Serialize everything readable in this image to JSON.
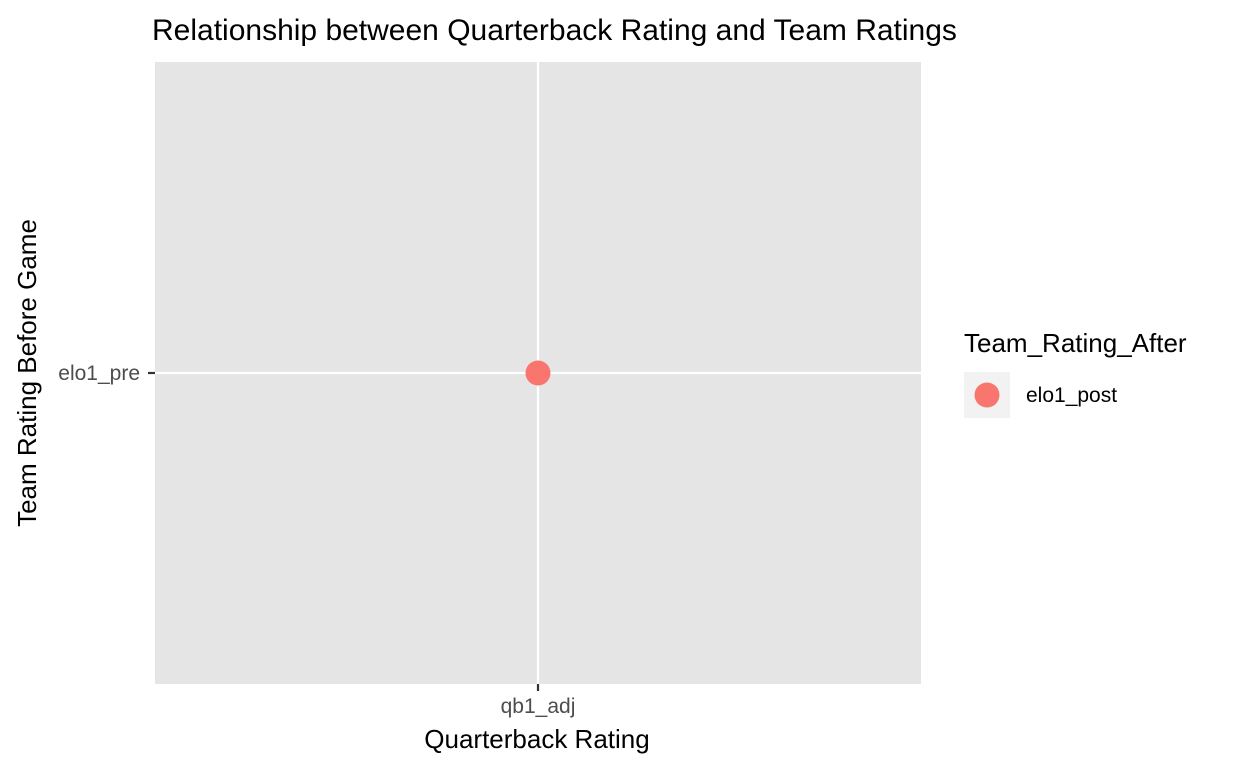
{
  "chart_data": {
    "type": "scatter",
    "title": "Relationship between Quarterback Rating and Team Ratings",
    "xlabel": "Quarterback Rating",
    "ylabel": "Team Rating Before Game",
    "x_categories": [
      "qb1_adj"
    ],
    "y_categories": [
      "elo1_pre"
    ],
    "series": [
      {
        "name": "elo1_post",
        "color": "#F8766D",
        "points": [
          {
            "x": "qb1_adj",
            "y": "elo1_pre"
          }
        ]
      }
    ],
    "grid": true,
    "legend": {
      "title": "Team_Rating_After",
      "position": "right",
      "entries": [
        {
          "label": "elo1_post",
          "color": "#F8766D"
        }
      ]
    },
    "panel_background": "#E5E5E5",
    "grid_color": "#FFFFFF",
    "legend_key_background": "#F2F2F2"
  }
}
